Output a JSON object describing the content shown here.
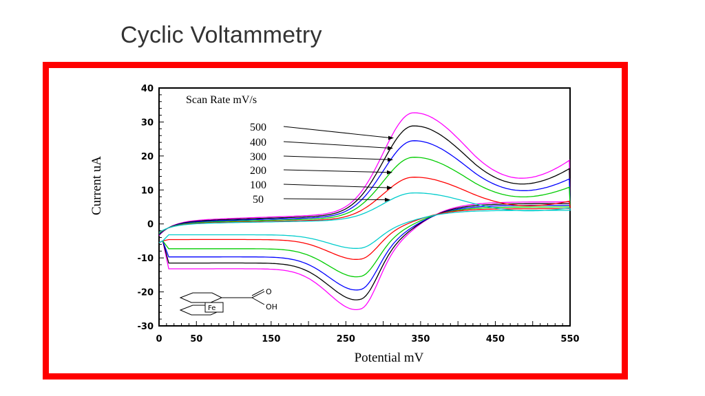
{
  "slide": {
    "title": "Cyclic Voltammetry"
  },
  "colors": {
    "frame": "#ff0000"
  },
  "chart_data": {
    "type": "line",
    "title": "",
    "xlabel": "Potential mV",
    "ylabel": "Current uA",
    "xlim": [
      0,
      550
    ],
    "ylim": [
      -30,
      40
    ],
    "x_ticks": [
      0,
      50,
      150,
      250,
      350,
      450,
      550
    ],
    "y_ticks": [
      40,
      30,
      20,
      10,
      0,
      -10,
      -20,
      -30
    ],
    "legend_title": "Scan Rate mV/s",
    "legend_placement": "top-left",
    "grid": false,
    "structure_labels": [
      "Fe",
      "O",
      "OH"
    ],
    "series": [
      {
        "name": "500",
        "color": "#ff00ff",
        "ipa": 34,
        "ipc": -26.5,
        "baseline": 0.9,
        "tail_top": 19.5,
        "tail_bottom": 6.5,
        "return_start": -13.2
      },
      {
        "name": "400",
        "color": "#000000",
        "ipa": 30,
        "ipc": -23.5,
        "baseline": 0.7,
        "tail_top": 17,
        "tail_bottom": 6.0,
        "return_start": -11.5
      },
      {
        "name": "300",
        "color": "#0000ff",
        "ipa": 25.5,
        "ipc": -20.5,
        "baseline": 0.5,
        "tail_top": 14,
        "tail_bottom": 5.5,
        "return_start": -9.7
      },
      {
        "name": "200",
        "color": "#00cc00",
        "ipa": 20.5,
        "ipc": -16.5,
        "baseline": 0.3,
        "tail_top": 11.5,
        "tail_bottom": 5.0,
        "return_start": -7.3
      },
      {
        "name": "100",
        "color": "#ff0000",
        "ipa": 14.5,
        "ipc": -11.2,
        "baseline": 0.1,
        "tail_top": 7.5,
        "tail_bottom": 4.5,
        "return_start": -4.6
      },
      {
        "name": "50",
        "color": "#00cccc",
        "ipa": 9.8,
        "ipc": -7.8,
        "baseline": 0.0,
        "tail_top": 5.5,
        "tail_bottom": 4.0,
        "return_start": -3.2
      }
    ]
  }
}
